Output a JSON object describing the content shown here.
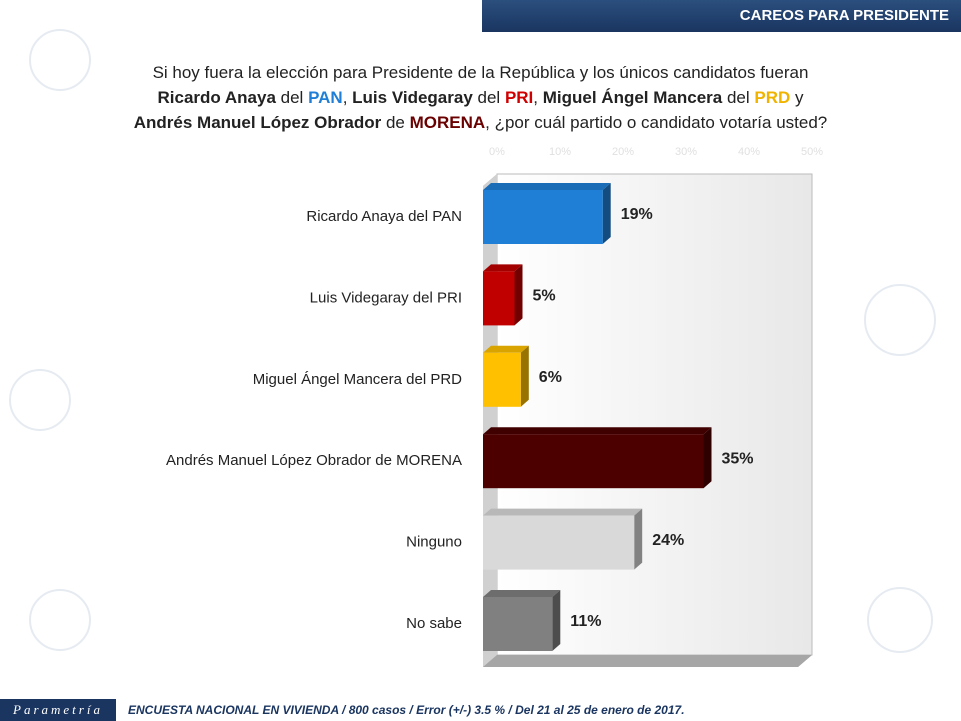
{
  "header": "CAREOS PARA PRESIDENTE",
  "logo": "Parametría",
  "footer": "ENCUESTA NACIONAL EN VIVIENDA / 800 casos / Error (+/-) 3.5 % / Del 21 al 25 de enero de 2017.",
  "chart_data": {
    "type": "hbar",
    "title": [
      [
        {
          "text": "Si hoy fuera la elección para Presidente de la República y los únicos candidatos fueran"
        }
      ],
      [
        {
          "text": "Ricardo Anaya",
          "bold": true
        },
        {
          "text": " del "
        },
        {
          "text": "PAN",
          "bold": true,
          "color": "#1f7fd6"
        },
        {
          "text": ", "
        },
        {
          "text": "Luis Videgaray",
          "bold": true
        },
        {
          "text": " del "
        },
        {
          "text": "PRI",
          "bold": true,
          "color": "#d00000"
        },
        {
          "text": ", "
        },
        {
          "text": "Miguel Ángel Mancera",
          "bold": true
        },
        {
          "text": " del "
        },
        {
          "text": "PRD",
          "bold": true,
          "color": "#f0b400"
        },
        {
          "text": " y"
        }
      ],
      [
        {
          "text": "Andrés Manuel López Obrador",
          "bold": true
        },
        {
          "text": " de "
        },
        {
          "text": "MORENA",
          "bold": true,
          "color": "#6a0000"
        },
        {
          "text": ", ¿por cuál partido o candidato votaría usted?"
        }
      ]
    ],
    "categories": [
      "Ricardo Anaya del PAN",
      "Luis Videgaray del PRI",
      "Miguel Ángel Mancera del PRD",
      "Andrés Manuel López Obrador de MORENA",
      "Ninguno",
      "No sabe"
    ],
    "values": [
      19,
      5,
      6,
      35,
      24,
      11
    ],
    "value_labels": [
      "19%",
      "5%",
      "6%",
      "35%",
      "24%",
      "11%"
    ],
    "colors": [
      "#1f7fd6",
      "#c00000",
      "#ffc000",
      "#4d0000",
      "#d9d9d9",
      "#808080"
    ],
    "xlim": [
      0,
      50
    ],
    "xticks": [
      {
        "value": 0,
        "label": "0%"
      },
      {
        "value": 10,
        "label": "10%"
      },
      {
        "value": 20,
        "label": "20%"
      },
      {
        "value": 30,
        "label": "30%"
      },
      {
        "value": 40,
        "label": "40%"
      },
      {
        "value": 50,
        "label": "50%"
      }
    ]
  }
}
